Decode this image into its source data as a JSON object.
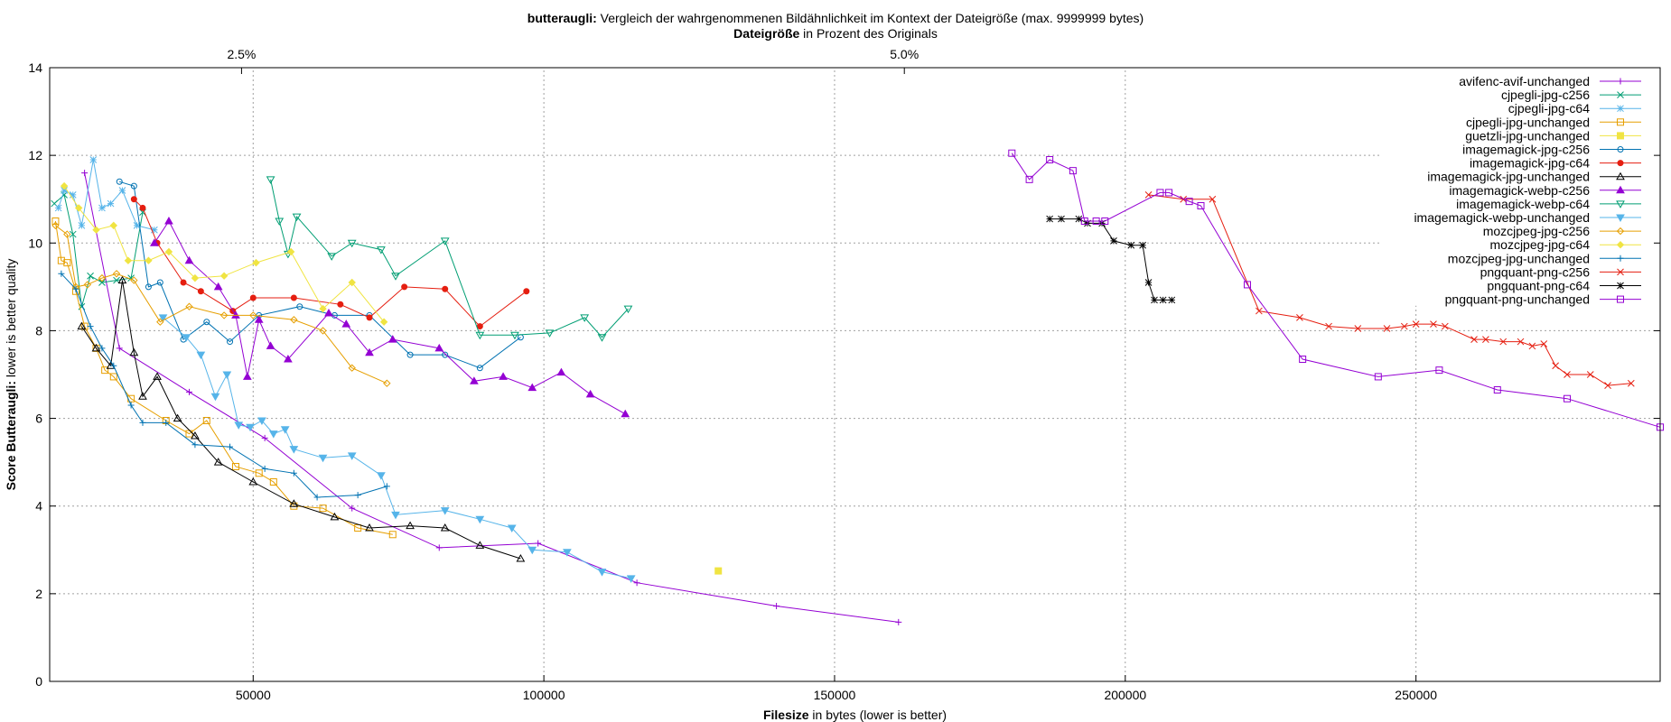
{
  "title": {
    "bold": "butteraugli:",
    "rest": " Vergleich der wahrgenommenen Bildähnlichkeit im Kontext der Dateigröße (max. 9999999 bytes)"
  },
  "top_axis_label": {
    "bold": "Dateigröße",
    "rest": " in Prozent des Originals"
  },
  "x_axis_label": {
    "bold": "Filesize",
    "rest": " in bytes (lower is better)"
  },
  "y_axis_label": {
    "bold": "Score Butteraugli:",
    "rest": " lower is better quality"
  },
  "chart_data": {
    "type": "line",
    "xlim": [
      15000,
      292000
    ],
    "ylim": [
      0,
      14
    ],
    "grid": true,
    "legend_position": "top-right",
    "x_ticks": [
      {
        "value": 50000,
        "label": "50000"
      },
      {
        "value": 100000,
        "label": "100000"
      },
      {
        "value": 150000,
        "label": "150000"
      },
      {
        "value": 200000,
        "label": "200000"
      },
      {
        "value": 250000,
        "label": "250000"
      }
    ],
    "y_ticks": [
      {
        "value": 0,
        "label": "0"
      },
      {
        "value": 2,
        "label": "2"
      },
      {
        "value": 4,
        "label": "4"
      },
      {
        "value": 6,
        "label": "6"
      },
      {
        "value": 8,
        "label": "8"
      },
      {
        "value": 10,
        "label": "10"
      },
      {
        "value": 12,
        "label": "12"
      },
      {
        "value": 14,
        "label": "14"
      }
    ],
    "top_ticks": [
      {
        "value": 48000,
        "label": "2.5%"
      },
      {
        "value": 162000,
        "label": "5.0%"
      }
    ],
    "series": [
      {
        "name": "avifenc-avif-unchanged",
        "color": "#9400d3",
        "marker": "plus",
        "points": [
          [
            21000,
            11.6
          ],
          [
            27000,
            7.6
          ],
          [
            39000,
            6.6
          ],
          [
            52000,
            5.55
          ],
          [
            67000,
            3.95
          ],
          [
            82000,
            3.05
          ],
          [
            99000,
            3.15
          ],
          [
            116000,
            2.25
          ],
          [
            140000,
            1.72
          ],
          [
            161000,
            1.35
          ]
        ]
      },
      {
        "name": "cjpegli-jpg-c256",
        "color": "#009e73",
        "marker": "x",
        "points": [
          [
            15800,
            10.9
          ],
          [
            17500,
            11.1
          ],
          [
            19000,
            10.2
          ],
          [
            20500,
            8.55
          ],
          [
            22000,
            9.25
          ],
          [
            24000,
            9.1
          ],
          [
            26500,
            9.15
          ],
          [
            29000,
            9.2
          ],
          [
            31000,
            10.7
          ]
        ]
      },
      {
        "name": "cjpegli-jpg-c64",
        "color": "#56b4e9",
        "marker": "star",
        "points": [
          [
            16500,
            10.8
          ],
          [
            17500,
            11.2
          ],
          [
            19000,
            11.1
          ],
          [
            20500,
            10.4
          ],
          [
            22500,
            11.9
          ],
          [
            24000,
            10.8
          ],
          [
            25500,
            10.9
          ],
          [
            27500,
            11.2
          ],
          [
            30000,
            10.4
          ],
          [
            33000,
            10.3
          ]
        ]
      },
      {
        "name": "cjpegli-jpg-unchanged",
        "color": "#e69f00",
        "marker": "square",
        "points": [
          [
            16000,
            10.5
          ],
          [
            17000,
            9.6
          ],
          [
            18000,
            9.55
          ],
          [
            19500,
            8.9
          ],
          [
            21000,
            8.1
          ],
          [
            23000,
            7.6
          ],
          [
            24500,
            7.1
          ],
          [
            26000,
            6.95
          ],
          [
            29000,
            6.45
          ],
          [
            35000,
            5.95
          ],
          [
            39000,
            5.65
          ],
          [
            42000,
            5.95
          ],
          [
            47000,
            4.9
          ],
          [
            51000,
            4.75
          ],
          [
            53500,
            4.55
          ],
          [
            57000,
            4.0
          ],
          [
            62000,
            3.95
          ],
          [
            68000,
            3.5
          ],
          [
            74000,
            3.35
          ]
        ]
      },
      {
        "name": "guetzli-jpg-unchanged",
        "color": "#f0e442",
        "marker": "fsquare",
        "points": [
          [
            130000,
            2.52
          ]
        ]
      },
      {
        "name": "imagemagick-jpg-c256",
        "color": "#0072b2",
        "marker": "circle",
        "points": [
          [
            27000,
            11.4
          ],
          [
            29500,
            11.3
          ],
          [
            32000,
            9.0
          ],
          [
            34000,
            9.1
          ],
          [
            38000,
            7.8
          ],
          [
            42000,
            8.2
          ],
          [
            46000,
            7.75
          ],
          [
            51000,
            8.35
          ],
          [
            58000,
            8.55
          ],
          [
            64000,
            8.35
          ],
          [
            70000,
            8.35
          ],
          [
            77000,
            7.45
          ],
          [
            83000,
            7.45
          ],
          [
            89000,
            7.15
          ],
          [
            96000,
            7.85
          ]
        ]
      },
      {
        "name": "imagemagick-jpg-c64",
        "color": "#e51e10",
        "marker": "fcircle",
        "points": [
          [
            29500,
            11.0
          ],
          [
            31000,
            10.8
          ],
          [
            33500,
            10.0
          ],
          [
            38000,
            9.1
          ],
          [
            41000,
            8.9
          ],
          [
            46500,
            8.45
          ],
          [
            50000,
            8.75
          ],
          [
            57000,
            8.75
          ],
          [
            65000,
            8.6
          ],
          [
            70000,
            8.3
          ],
          [
            76000,
            9.0
          ],
          [
            83000,
            8.95
          ],
          [
            89000,
            8.1
          ],
          [
            97000,
            8.9
          ]
        ]
      },
      {
        "name": "imagemagick-jpg-unchanged",
        "color": "#000000",
        "marker": "triangle",
        "points": [
          [
            20500,
            8.1
          ],
          [
            23000,
            7.6
          ],
          [
            25500,
            7.2
          ],
          [
            27500,
            9.15
          ],
          [
            29500,
            7.5
          ],
          [
            31000,
            6.5
          ],
          [
            33500,
            6.95
          ],
          [
            37000,
            6.0
          ],
          [
            40000,
            5.6
          ],
          [
            44000,
            5.0
          ],
          [
            50000,
            4.55
          ],
          [
            57000,
            4.05
          ],
          [
            64000,
            3.75
          ],
          [
            70000,
            3.5
          ],
          [
            77000,
            3.55
          ],
          [
            83000,
            3.5
          ],
          [
            89000,
            3.1
          ],
          [
            96000,
            2.8
          ]
        ]
      },
      {
        "name": "imagemagick-webp-c256",
        "color": "#9400d3",
        "marker": "ftriangle",
        "points": [
          [
            33000,
            10.0
          ],
          [
            35500,
            10.5
          ],
          [
            39000,
            9.6
          ],
          [
            44000,
            9.0
          ],
          [
            47000,
            8.35
          ],
          [
            49000,
            6.95
          ],
          [
            51000,
            8.25
          ],
          [
            53000,
            7.65
          ],
          [
            56000,
            7.35
          ],
          [
            63000,
            8.4
          ],
          [
            66000,
            8.15
          ],
          [
            70000,
            7.5
          ],
          [
            74000,
            7.8
          ],
          [
            82000,
            7.6
          ],
          [
            88000,
            6.85
          ],
          [
            93000,
            6.95
          ],
          [
            98000,
            6.7
          ],
          [
            103000,
            7.05
          ],
          [
            108000,
            6.55
          ],
          [
            114000,
            6.1
          ]
        ]
      },
      {
        "name": "imagemagick-webp-c64",
        "color": "#009e73",
        "marker": "itriangle",
        "points": [
          [
            53000,
            11.45
          ],
          [
            54500,
            10.5
          ],
          [
            56000,
            9.75
          ],
          [
            57500,
            10.6
          ],
          [
            63500,
            9.7
          ],
          [
            67000,
            10.0
          ],
          [
            72000,
            9.85
          ],
          [
            74500,
            9.25
          ],
          [
            83000,
            10.05
          ],
          [
            89000,
            7.9
          ],
          [
            95000,
            7.9
          ],
          [
            101000,
            7.95
          ],
          [
            107000,
            8.3
          ],
          [
            110000,
            7.85
          ],
          [
            114500,
            8.5
          ]
        ]
      },
      {
        "name": "imagemagick-webp-unchanged",
        "color": "#56b4e9",
        "marker": "fitriangle",
        "points": [
          [
            34500,
            8.3
          ],
          [
            38500,
            7.85
          ],
          [
            41000,
            7.45
          ],
          [
            43500,
            6.5
          ],
          [
            45500,
            7.0
          ],
          [
            47500,
            5.85
          ],
          [
            49500,
            5.8
          ],
          [
            51500,
            5.95
          ],
          [
            53500,
            5.65
          ],
          [
            55500,
            5.75
          ],
          [
            57000,
            5.3
          ],
          [
            62000,
            5.1
          ],
          [
            67000,
            5.15
          ],
          [
            72000,
            4.7
          ],
          [
            74500,
            3.8
          ],
          [
            83000,
            3.9
          ],
          [
            89000,
            3.7
          ],
          [
            94500,
            3.5
          ],
          [
            98000,
            3.0
          ],
          [
            104000,
            2.95
          ],
          [
            110000,
            2.5
          ],
          [
            115000,
            2.35
          ]
        ]
      },
      {
        "name": "mozcjpeg-jpg-c256",
        "color": "#e69f00",
        "marker": "diamond",
        "points": [
          [
            16000,
            10.4
          ],
          [
            18000,
            10.2
          ],
          [
            19500,
            9.0
          ],
          [
            21500,
            9.05
          ],
          [
            24000,
            9.2
          ],
          [
            26500,
            9.3
          ],
          [
            29500,
            9.15
          ],
          [
            34000,
            8.2
          ],
          [
            39000,
            8.55
          ],
          [
            45000,
            8.35
          ],
          [
            50000,
            8.35
          ],
          [
            57000,
            8.25
          ],
          [
            62000,
            8.0
          ],
          [
            67000,
            7.15
          ],
          [
            73000,
            6.8
          ]
        ]
      },
      {
        "name": "mozcjpeg-jpg-c64",
        "color": "#f0e442",
        "marker": "fdiamond",
        "points": [
          [
            17500,
            11.3
          ],
          [
            20000,
            10.8
          ],
          [
            23000,
            10.3
          ],
          [
            26000,
            10.4
          ],
          [
            28500,
            9.6
          ],
          [
            32000,
            9.6
          ],
          [
            35500,
            9.8
          ],
          [
            40000,
            9.2
          ],
          [
            45000,
            9.25
          ],
          [
            50500,
            9.55
          ],
          [
            56500,
            9.8
          ],
          [
            62000,
            8.5
          ],
          [
            67000,
            9.1
          ],
          [
            72500,
            8.2
          ]
        ]
      },
      {
        "name": "mozcjpeg-jpg-unchanged",
        "color": "#0072b2",
        "marker": "plus",
        "points": [
          [
            17000,
            9.3
          ],
          [
            19500,
            8.95
          ],
          [
            22000,
            8.1
          ],
          [
            24000,
            7.6
          ],
          [
            26000,
            7.2
          ],
          [
            29000,
            6.3
          ],
          [
            31000,
            5.9
          ],
          [
            35000,
            5.9
          ],
          [
            40000,
            5.4
          ],
          [
            46000,
            5.35
          ],
          [
            52000,
            4.85
          ],
          [
            57000,
            4.75
          ],
          [
            61000,
            4.2
          ],
          [
            68000,
            4.25
          ],
          [
            73000,
            4.45
          ]
        ]
      },
      {
        "name": "pngquant-png-c256",
        "color": "#e51e10",
        "marker": "x",
        "points": [
          [
            204000,
            11.1
          ],
          [
            210000,
            11.0
          ],
          [
            215000,
            11.0
          ],
          [
            223000,
            8.45
          ],
          [
            230000,
            8.3
          ],
          [
            235000,
            8.1
          ],
          [
            240000,
            8.05
          ],
          [
            245000,
            8.05
          ],
          [
            248000,
            8.1
          ],
          [
            250000,
            8.15
          ],
          [
            253000,
            8.15
          ],
          [
            255000,
            8.1
          ],
          [
            260000,
            7.8
          ],
          [
            262000,
            7.8
          ],
          [
            265000,
            7.75
          ],
          [
            268000,
            7.75
          ],
          [
            270000,
            7.65
          ],
          [
            272000,
            7.7
          ],
          [
            274000,
            7.2
          ],
          [
            276000,
            7.0
          ],
          [
            280000,
            7.0
          ],
          [
            283000,
            6.75
          ],
          [
            287000,
            6.8
          ]
        ]
      },
      {
        "name": "pngquant-png-c64",
        "color": "#000000",
        "marker": "star",
        "points": [
          [
            187000,
            10.55
          ],
          [
            189000,
            10.55
          ],
          [
            192000,
            10.55
          ],
          [
            193500,
            10.45
          ],
          [
            196000,
            10.45
          ],
          [
            198000,
            10.05
          ],
          [
            201000,
            9.95
          ],
          [
            203000,
            9.95
          ],
          [
            204000,
            9.1
          ],
          [
            205000,
            8.7
          ],
          [
            206500,
            8.7
          ],
          [
            208000,
            8.7
          ]
        ]
      },
      {
        "name": "pngquant-png-unchanged",
        "color": "#9400d3",
        "marker": "square",
        "points": [
          [
            180500,
            12.05
          ],
          [
            183500,
            11.45
          ],
          [
            187000,
            11.9
          ],
          [
            191000,
            11.65
          ],
          [
            193000,
            10.5
          ],
          [
            195000,
            10.5
          ],
          [
            196500,
            10.5
          ],
          [
            206000,
            11.15
          ],
          [
            207500,
            11.15
          ],
          [
            211000,
            10.95
          ],
          [
            213000,
            10.85
          ],
          [
            221000,
            9.05
          ],
          [
            230500,
            7.35
          ],
          [
            243500,
            6.95
          ],
          [
            254000,
            7.1
          ],
          [
            264000,
            6.65
          ],
          [
            276000,
            6.45
          ],
          [
            292000,
            5.8
          ]
        ]
      }
    ]
  }
}
